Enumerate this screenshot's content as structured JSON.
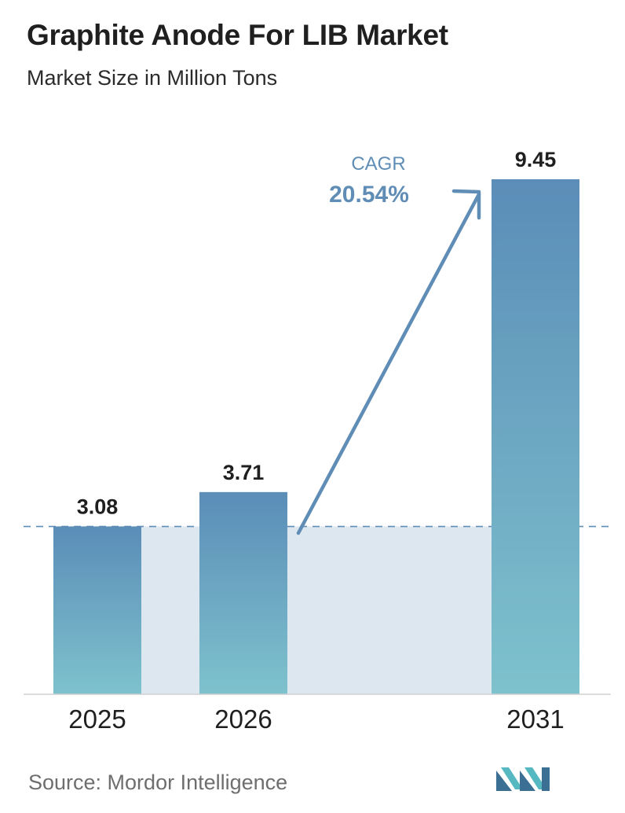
{
  "title": "Graphite Anode For LIB Market",
  "subtitle": "Market Size in Million Tons",
  "source": "Source:  Mordor Intelligence",
  "cagr": {
    "label": "CAGR",
    "value": "20.54%"
  },
  "colors": {
    "bar_top": "#5b8db8",
    "bar_bottom": "#7ec2cd",
    "band": "#dde7f0",
    "arrow": "#5f8db6",
    "dashed_line": "#5f8db6",
    "logo_dark": "#3b6f93",
    "logo_light": "#56b9c2"
  },
  "chart_data": {
    "type": "bar",
    "categories": [
      "2025",
      "2026",
      "2031"
    ],
    "values": [
      3.08,
      3.71,
      9.45
    ],
    "value_labels": [
      "3.08",
      "3.71",
      "9.45"
    ],
    "ylim": [
      0,
      9.45
    ],
    "grid": false,
    "reference_line": 3.08
  }
}
